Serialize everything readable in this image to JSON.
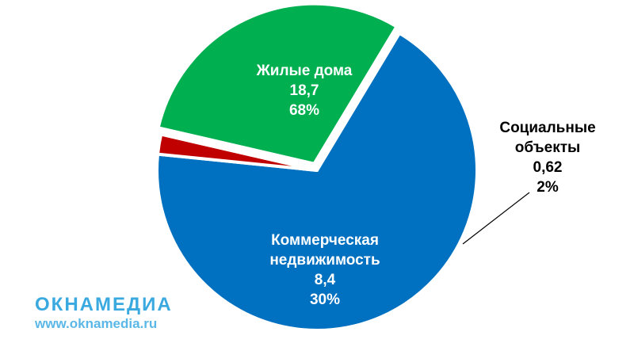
{
  "chart_data": {
    "type": "pie",
    "slices": [
      {
        "name": "Жилые дома",
        "value": "18,7",
        "percent": "68%",
        "share": 0.68,
        "color": "#0070c0",
        "label_color": "#ffffff",
        "label_lines": [
          "Жилые дома"
        ]
      },
      {
        "name": "Социальные объекты",
        "value": "0,62",
        "percent": "2%",
        "share": 0.02,
        "color": "#c00000",
        "label_color": "#000000",
        "label_lines": [
          "Социальные",
          "объекты"
        ]
      },
      {
        "name": "Коммерческая недвижимость",
        "value": "8,4",
        "percent": "30%",
        "share": 0.3,
        "color": "#00b050",
        "label_color": "#ffffff",
        "label_lines": [
          "Коммерческая",
          "недвижимость"
        ]
      }
    ]
  },
  "watermark": {
    "name": "ОКНАМЕДИА",
    "url": "www.oknamedia.ru"
  }
}
